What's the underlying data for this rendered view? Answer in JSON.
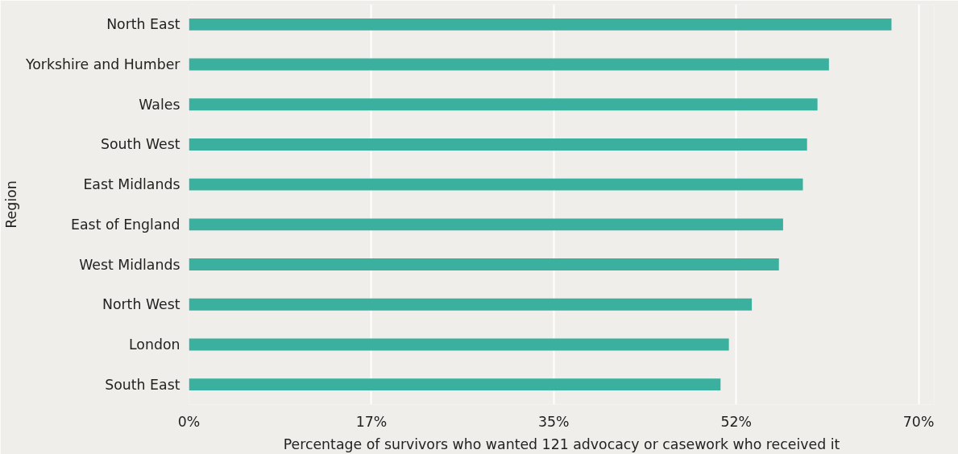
{
  "chart_data": {
    "type": "bar",
    "orientation": "horizontal",
    "xlabel": "Percentage of survivors who wanted 121 advocacy or casework who received it",
    "ylabel": "Region",
    "categories": [
      "North East",
      "Yorkshire and Humber",
      "Wales",
      "South West",
      "East Midlands",
      "East of England",
      "West Midlands",
      "North West",
      "London",
      "South East"
    ],
    "values": [
      67.4,
      61.4,
      60.3,
      59.3,
      58.9,
      57.0,
      56.6,
      54.0,
      51.8,
      51.0
    ],
    "color": "#3bb09e",
    "xlim": [
      0,
      71.5
    ],
    "xticks": [
      {
        "value": 0,
        "label": "0%"
      },
      {
        "value": 17.5,
        "label": "17%"
      },
      {
        "value": 35,
        "label": "35%"
      },
      {
        "value": 52.5,
        "label": "52%"
      },
      {
        "value": 70,
        "label": "70%"
      }
    ],
    "grid": "x"
  }
}
